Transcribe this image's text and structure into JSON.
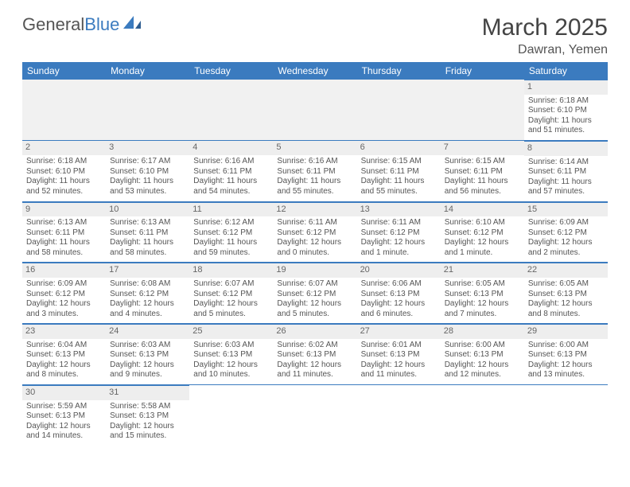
{
  "brand": {
    "part1": "General",
    "part2": "Blue",
    "color_text": "#555555",
    "color_accent": "#3b7bbf"
  },
  "title": "March 2025",
  "location": "Dawran, Yemen",
  "header_bg": "#3b7bbf",
  "row_stripe": "#eeeeee",
  "weekdays": [
    "Sunday",
    "Monday",
    "Tuesday",
    "Wednesday",
    "Thursday",
    "Friday",
    "Saturday"
  ],
  "weeks": [
    [
      null,
      null,
      null,
      null,
      null,
      null,
      {
        "d": "1",
        "sr": "Sunrise: 6:18 AM",
        "ss": "Sunset: 6:10 PM",
        "dl": "Daylight: 11 hours and 51 minutes."
      }
    ],
    [
      {
        "d": "2",
        "sr": "Sunrise: 6:18 AM",
        "ss": "Sunset: 6:10 PM",
        "dl": "Daylight: 11 hours and 52 minutes."
      },
      {
        "d": "3",
        "sr": "Sunrise: 6:17 AM",
        "ss": "Sunset: 6:10 PM",
        "dl": "Daylight: 11 hours and 53 minutes."
      },
      {
        "d": "4",
        "sr": "Sunrise: 6:16 AM",
        "ss": "Sunset: 6:11 PM",
        "dl": "Daylight: 11 hours and 54 minutes."
      },
      {
        "d": "5",
        "sr": "Sunrise: 6:16 AM",
        "ss": "Sunset: 6:11 PM",
        "dl": "Daylight: 11 hours and 55 minutes."
      },
      {
        "d": "6",
        "sr": "Sunrise: 6:15 AM",
        "ss": "Sunset: 6:11 PM",
        "dl": "Daylight: 11 hours and 55 minutes."
      },
      {
        "d": "7",
        "sr": "Sunrise: 6:15 AM",
        "ss": "Sunset: 6:11 PM",
        "dl": "Daylight: 11 hours and 56 minutes."
      },
      {
        "d": "8",
        "sr": "Sunrise: 6:14 AM",
        "ss": "Sunset: 6:11 PM",
        "dl": "Daylight: 11 hours and 57 minutes."
      }
    ],
    [
      {
        "d": "9",
        "sr": "Sunrise: 6:13 AM",
        "ss": "Sunset: 6:11 PM",
        "dl": "Daylight: 11 hours and 58 minutes."
      },
      {
        "d": "10",
        "sr": "Sunrise: 6:13 AM",
        "ss": "Sunset: 6:11 PM",
        "dl": "Daylight: 11 hours and 58 minutes."
      },
      {
        "d": "11",
        "sr": "Sunrise: 6:12 AM",
        "ss": "Sunset: 6:12 PM",
        "dl": "Daylight: 11 hours and 59 minutes."
      },
      {
        "d": "12",
        "sr": "Sunrise: 6:11 AM",
        "ss": "Sunset: 6:12 PM",
        "dl": "Daylight: 12 hours and 0 minutes."
      },
      {
        "d": "13",
        "sr": "Sunrise: 6:11 AM",
        "ss": "Sunset: 6:12 PM",
        "dl": "Daylight: 12 hours and 1 minute."
      },
      {
        "d": "14",
        "sr": "Sunrise: 6:10 AM",
        "ss": "Sunset: 6:12 PM",
        "dl": "Daylight: 12 hours and 1 minute."
      },
      {
        "d": "15",
        "sr": "Sunrise: 6:09 AM",
        "ss": "Sunset: 6:12 PM",
        "dl": "Daylight: 12 hours and 2 minutes."
      }
    ],
    [
      {
        "d": "16",
        "sr": "Sunrise: 6:09 AM",
        "ss": "Sunset: 6:12 PM",
        "dl": "Daylight: 12 hours and 3 minutes."
      },
      {
        "d": "17",
        "sr": "Sunrise: 6:08 AM",
        "ss": "Sunset: 6:12 PM",
        "dl": "Daylight: 12 hours and 4 minutes."
      },
      {
        "d": "18",
        "sr": "Sunrise: 6:07 AM",
        "ss": "Sunset: 6:12 PM",
        "dl": "Daylight: 12 hours and 5 minutes."
      },
      {
        "d": "19",
        "sr": "Sunrise: 6:07 AM",
        "ss": "Sunset: 6:12 PM",
        "dl": "Daylight: 12 hours and 5 minutes."
      },
      {
        "d": "20",
        "sr": "Sunrise: 6:06 AM",
        "ss": "Sunset: 6:13 PM",
        "dl": "Daylight: 12 hours and 6 minutes."
      },
      {
        "d": "21",
        "sr": "Sunrise: 6:05 AM",
        "ss": "Sunset: 6:13 PM",
        "dl": "Daylight: 12 hours and 7 minutes."
      },
      {
        "d": "22",
        "sr": "Sunrise: 6:05 AM",
        "ss": "Sunset: 6:13 PM",
        "dl": "Daylight: 12 hours and 8 minutes."
      }
    ],
    [
      {
        "d": "23",
        "sr": "Sunrise: 6:04 AM",
        "ss": "Sunset: 6:13 PM",
        "dl": "Daylight: 12 hours and 8 minutes."
      },
      {
        "d": "24",
        "sr": "Sunrise: 6:03 AM",
        "ss": "Sunset: 6:13 PM",
        "dl": "Daylight: 12 hours and 9 minutes."
      },
      {
        "d": "25",
        "sr": "Sunrise: 6:03 AM",
        "ss": "Sunset: 6:13 PM",
        "dl": "Daylight: 12 hours and 10 minutes."
      },
      {
        "d": "26",
        "sr": "Sunrise: 6:02 AM",
        "ss": "Sunset: 6:13 PM",
        "dl": "Daylight: 12 hours and 11 minutes."
      },
      {
        "d": "27",
        "sr": "Sunrise: 6:01 AM",
        "ss": "Sunset: 6:13 PM",
        "dl": "Daylight: 12 hours and 11 minutes."
      },
      {
        "d": "28",
        "sr": "Sunrise: 6:00 AM",
        "ss": "Sunset: 6:13 PM",
        "dl": "Daylight: 12 hours and 12 minutes."
      },
      {
        "d": "29",
        "sr": "Sunrise: 6:00 AM",
        "ss": "Sunset: 6:13 PM",
        "dl": "Daylight: 12 hours and 13 minutes."
      }
    ],
    [
      {
        "d": "30",
        "sr": "Sunrise: 5:59 AM",
        "ss": "Sunset: 6:13 PM",
        "dl": "Daylight: 12 hours and 14 minutes."
      },
      {
        "d": "31",
        "sr": "Sunrise: 5:58 AM",
        "ss": "Sunset: 6:13 PM",
        "dl": "Daylight: 12 hours and 15 minutes."
      },
      null,
      null,
      null,
      null,
      null
    ]
  ]
}
